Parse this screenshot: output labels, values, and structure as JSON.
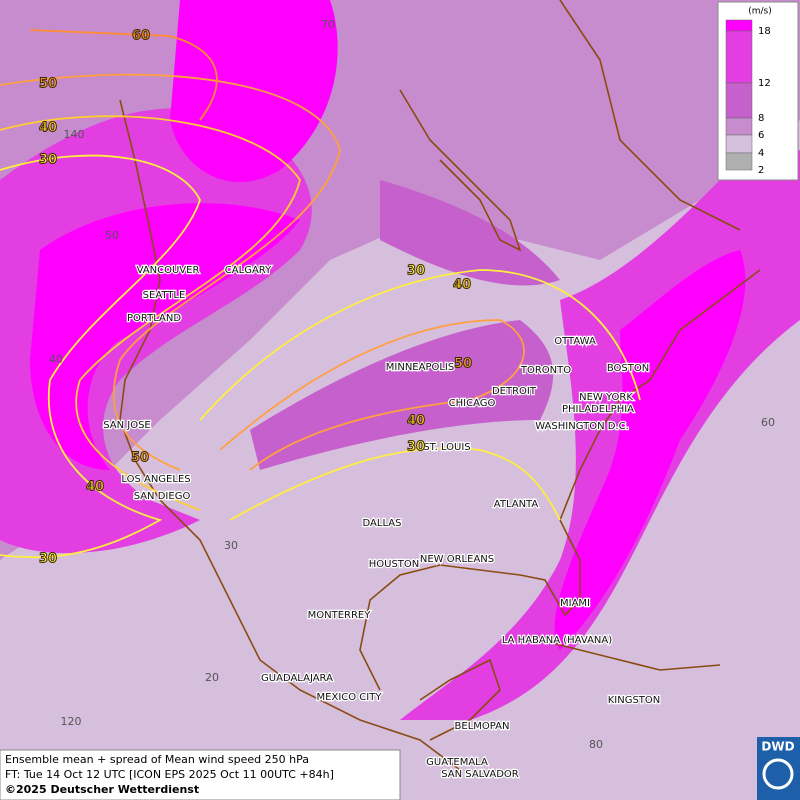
{
  "map": {
    "legend": {
      "unit": "(m/s)",
      "levels": [
        18,
        12,
        8,
        6,
        4,
        2
      ],
      "colors": [
        "#ff00ff",
        "#e23ee2",
        "#c560cc",
        "#c78ccd",
        "#d6bfdd",
        "#b0b0b0"
      ]
    },
    "cities": [
      "VANCOUVER",
      "CALGARY",
      "SEATTLE",
      "PORTLAND",
      "MINNEAPOLIS",
      "OTTAWA",
      "TORONTO",
      "BOSTON",
      "DETROIT",
      "NEW YORK",
      "PHILADELPHIA",
      "CHICAGO",
      "WASHINGTON D.C.",
      "SAN JOSE",
      "ST. LOUIS",
      "LOS ANGELES",
      "SAN DIEGO",
      "ATLANTA",
      "DALLAS",
      "HOUSTON",
      "NEW ORLEANS",
      "MONTERREY",
      "MIAMI",
      "LA HABANA (HAVANA)",
      "GUADALAJARA",
      "MEXICO CITY",
      "KINGSTON",
      "BELMOPAN",
      "GUATEMALA",
      "SAN SALVADOR"
    ],
    "contour_labels": [
      60,
      50,
      40,
      30,
      30,
      40,
      50,
      40,
      30,
      50,
      40,
      30
    ],
    "grid_labels": [
      70,
      140,
      50,
      40,
      30,
      20,
      120,
      80,
      60
    ],
    "footer": [
      "Ensemble mean + spread of Mean wind speed 250 hPa",
      "FT: Tue 14 Oct 12 UTC [ICON EPS 2025 Oct 11 00UTC +84h]",
      "©2025 Deutscher Wetterdienst"
    ],
    "logo": "DWD"
  }
}
